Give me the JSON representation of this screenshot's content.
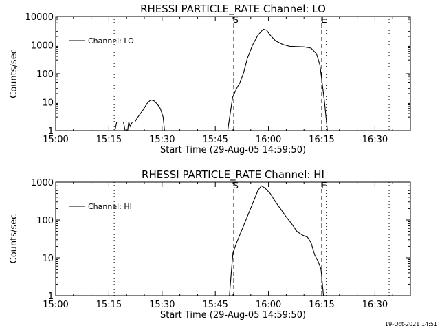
{
  "footer": "19-Oct-2021 14:51",
  "chart_data": [
    {
      "type": "line",
      "title": "RHESSI PARTICLE_RATE Channel: LO",
      "xlabel": "Start Time (29-Aug-05 14:59:50)",
      "ylabel": "Counts/sec",
      "yscale": "log",
      "ylim": [
        1,
        10000
      ],
      "xlim": [
        "15:00",
        "16:40"
      ],
      "x_unit": "minutes after 15:00",
      "x_ticks": [
        "15:00",
        "15:15",
        "15:30",
        "15:45",
        "16:00",
        "16:15",
        "16:30"
      ],
      "y_ticks": [
        "1",
        "10",
        "100",
        "1000",
        "10000"
      ],
      "legend": "top-left",
      "series": [
        {
          "name": "Channel: LO",
          "color": "#000000",
          "segments": [
            [
              [
                16.7,
                1
              ],
              [
                17.2,
                2
              ],
              [
                19.1,
                2
              ],
              [
                19.6,
                1
              ]
            ],
            [
              [
                20.3,
                1
              ],
              [
                20.6,
                2
              ],
              [
                21.0,
                1.4
              ],
              [
                21.6,
                2
              ],
              [
                22.3,
                2
              ],
              [
                23.2,
                3
              ],
              [
                24.5,
                5
              ],
              [
                25.8,
                9
              ],
              [
                26.8,
                12
              ],
              [
                27.8,
                11
              ],
              [
                28.8,
                8
              ],
              [
                29.5,
                6
              ],
              [
                30.3,
                3
              ],
              [
                30.7,
                1
              ]
            ],
            [
              [
                48.5,
                1
              ],
              [
                49.2,
                4
              ],
              [
                49.9,
                15
              ],
              [
                51.0,
                30
              ],
              [
                52.0,
                50
              ],
              [
                53.0,
                110
              ],
              [
                54.0,
                330
              ],
              [
                55.5,
                1000
              ],
              [
                57.0,
                2200
              ],
              [
                58.5,
                3600
              ],
              [
                59.5,
                3300
              ],
              [
                60.5,
                2200
              ],
              [
                62.0,
                1400
              ],
              [
                64.0,
                1050
              ],
              [
                66.0,
                900
              ],
              [
                68.0,
                880
              ],
              [
                70.0,
                860
              ],
              [
                72.0,
                780
              ],
              [
                73.5,
                500
              ],
              [
                74.5,
                200
              ],
              [
                75.2,
                40
              ],
              [
                75.8,
                10
              ],
              [
                76.2,
                3
              ],
              [
                76.6,
                1
              ]
            ]
          ]
        }
      ],
      "markers": [
        {
          "label": "S",
          "x": 50.2,
          "style": "dashed"
        },
        {
          "label": "E",
          "x": 75.0,
          "style": "dashed"
        },
        {
          "label": "",
          "x": 16.5,
          "style": "dotted"
        },
        {
          "label": "",
          "x": 76.3,
          "style": "dotted"
        },
        {
          "label": "",
          "x": 94.0,
          "style": "dotted"
        }
      ]
    },
    {
      "type": "line",
      "title": "RHESSI PARTICLE_RATE Channel: HI",
      "xlabel": "Start Time (29-Aug-05 14:59:50)",
      "ylabel": "Counts/sec",
      "yscale": "log",
      "ylim": [
        1,
        1000
      ],
      "xlim": [
        "15:00",
        "16:40"
      ],
      "x_unit": "minutes after 15:00",
      "x_ticks": [
        "15:00",
        "15:15",
        "15:30",
        "15:45",
        "16:00",
        "16:15",
        "16:30"
      ],
      "y_ticks": [
        "1",
        "10",
        "100",
        "1000"
      ],
      "legend": "top-left",
      "series": [
        {
          "name": "Channel: HI",
          "color": "#000000",
          "segments": [
            [
              [
                49.0,
                1
              ],
              [
                49.5,
                4
              ],
              [
                50.0,
                14
              ],
              [
                51.0,
                25
              ],
              [
                52.5,
                55
              ],
              [
                54.0,
                120
              ],
              [
                55.5,
                270
              ],
              [
                57.0,
                600
              ],
              [
                58.0,
                800
              ],
              [
                59.0,
                700
              ],
              [
                60.5,
                500
              ],
              [
                62.0,
                300
              ],
              [
                63.5,
                190
              ],
              [
                65.0,
                120
              ],
              [
                66.5,
                80
              ],
              [
                68.0,
                50
              ],
              [
                69.5,
                40
              ],
              [
                71.0,
                35
              ],
              [
                72.0,
                25
              ],
              [
                73.0,
                12
              ],
              [
                74.0,
                8
              ],
              [
                74.8,
                5
              ],
              [
                75.2,
                2
              ],
              [
                75.5,
                1
              ]
            ]
          ]
        }
      ],
      "markers": [
        {
          "label": "S",
          "x": 50.2,
          "style": "dashed"
        },
        {
          "label": "E",
          "x": 75.0,
          "style": "dashed"
        },
        {
          "label": "",
          "x": 16.5,
          "style": "dotted"
        },
        {
          "label": "",
          "x": 76.3,
          "style": "dotted"
        },
        {
          "label": "",
          "x": 94.0,
          "style": "dotted"
        }
      ]
    }
  ]
}
